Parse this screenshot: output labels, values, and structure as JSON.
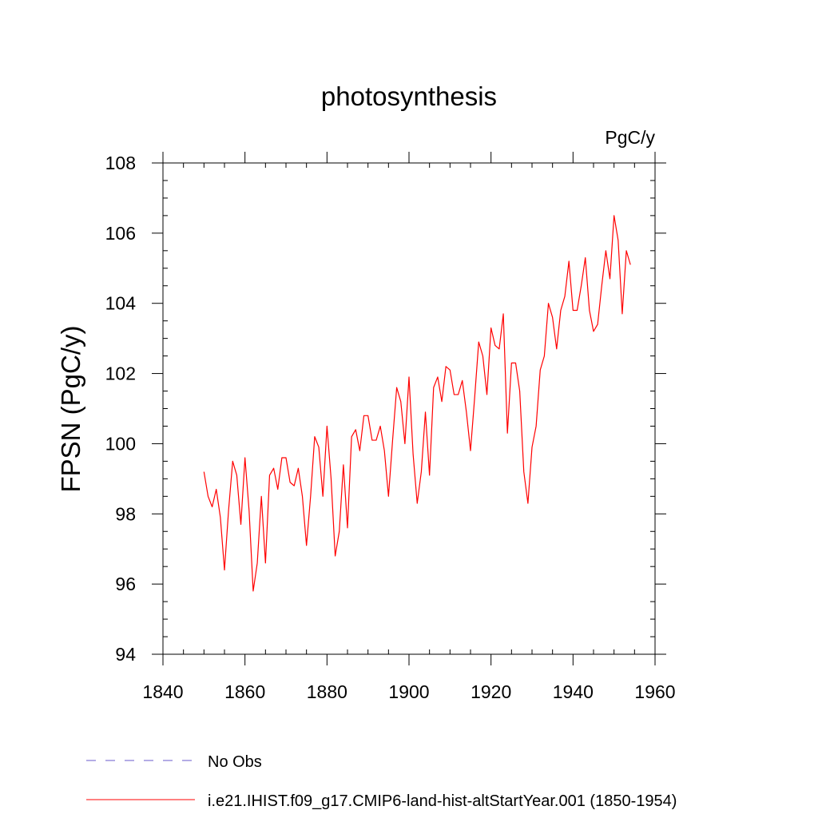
{
  "chart_data": {
    "type": "line",
    "title": "photosynthesis",
    "units_label": "PgC/y",
    "ylabel": "FPSN  (PgC/y)",
    "xlabel": "",
    "xlim": [
      1840,
      1960
    ],
    "ylim": [
      94,
      108
    ],
    "xticks": [
      1840,
      1860,
      1880,
      1900,
      1920,
      1940,
      1960
    ],
    "yticks": [
      94,
      96,
      98,
      100,
      102,
      104,
      106,
      108
    ],
    "grid": false,
    "legend_position": "bottom",
    "series": [
      {
        "name": "i.e21.IHIST.f09_g17.CMIP6-land-hist-altStartYear.001 (1850-1954)",
        "color": "#ff0000",
        "x": [
          1850,
          1851,
          1852,
          1853,
          1854,
          1855,
          1856,
          1857,
          1858,
          1859,
          1860,
          1861,
          1862,
          1863,
          1864,
          1865,
          1866,
          1867,
          1868,
          1869,
          1870,
          1871,
          1872,
          1873,
          1874,
          1875,
          1876,
          1877,
          1878,
          1879,
          1880,
          1881,
          1882,
          1883,
          1884,
          1885,
          1886,
          1887,
          1888,
          1889,
          1890,
          1891,
          1892,
          1893,
          1894,
          1895,
          1896,
          1897,
          1898,
          1899,
          1900,
          1901,
          1902,
          1903,
          1904,
          1905,
          1906,
          1907,
          1908,
          1909,
          1910,
          1911,
          1912,
          1913,
          1914,
          1915,
          1916,
          1917,
          1918,
          1919,
          1920,
          1921,
          1922,
          1923,
          1924,
          1925,
          1926,
          1927,
          1928,
          1929,
          1930,
          1931,
          1932,
          1933,
          1934,
          1935,
          1936,
          1937,
          1938,
          1939,
          1940,
          1941,
          1942,
          1943,
          1944,
          1945,
          1946,
          1947,
          1948,
          1949,
          1950,
          1951,
          1952,
          1953,
          1954
        ],
        "values": [
          99.2,
          98.5,
          98.2,
          98.7,
          97.9,
          96.4,
          98.1,
          99.5,
          99.1,
          97.7,
          99.6,
          98.1,
          95.8,
          96.6,
          98.5,
          96.6,
          99.1,
          99.3,
          98.7,
          99.6,
          99.6,
          98.9,
          98.8,
          99.3,
          98.5,
          97.1,
          98.5,
          100.2,
          99.9,
          98.5,
          100.5,
          99.0,
          96.8,
          97.5,
          99.4,
          97.6,
          100.2,
          100.4,
          99.8,
          100.8,
          100.8,
          100.1,
          100.1,
          100.5,
          99.8,
          98.5,
          100.1,
          101.6,
          101.2,
          100.0,
          101.9,
          99.7,
          98.3,
          99.2,
          100.9,
          99.1,
          101.6,
          101.9,
          101.2,
          102.2,
          102.1,
          101.4,
          101.4,
          101.8,
          100.9,
          99.8,
          101.3,
          102.9,
          102.5,
          101.4,
          103.3,
          102.8,
          102.7,
          103.7,
          100.3,
          102.3,
          102.3,
          101.5,
          99.2,
          98.3,
          99.9,
          100.5,
          102.1,
          102.5,
          104.0,
          103.6,
          102.7,
          103.8,
          104.2,
          105.2,
          103.8,
          103.8,
          104.5,
          105.3,
          103.8,
          103.2,
          103.4,
          104.5,
          105.5,
          104.7,
          106.5,
          105.8,
          103.7,
          105.5,
          105.1
        ]
      }
    ],
    "legend": [
      {
        "label": "No Obs",
        "style": "dashed",
        "color": "#6a5acd"
      },
      {
        "label": "i.e21.IHIST.f09_g17.CMIP6-land-hist-altStartYear.001 (1850-1954)",
        "style": "solid",
        "color": "#ff0000"
      }
    ]
  }
}
